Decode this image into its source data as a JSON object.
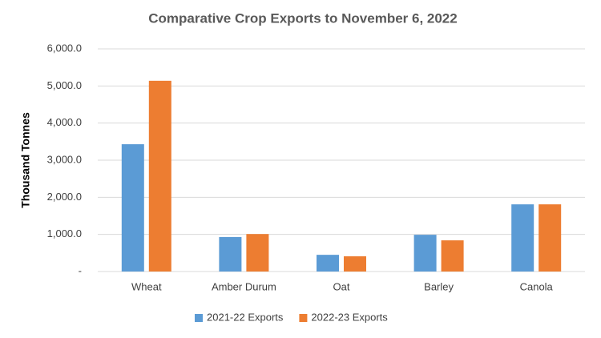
{
  "chart_data": {
    "type": "bar",
    "title": "Comparative Crop Exports to November 6, 2022",
    "y_label": "Thousand Tonnes",
    "categories": [
      "Wheat",
      "Amber Durum",
      "Oat",
      "Barley",
      "Canola"
    ],
    "series": [
      {
        "name": "2021-22 Exports",
        "color": "#5b9bd5",
        "values": [
          3430,
          930,
          450,
          990,
          1810
        ]
      },
      {
        "name": "2022-23 Exports",
        "color": "#ed7d31",
        "values": [
          5140,
          1010,
          410,
          840,
          1810
        ]
      }
    ],
    "ylim": [
      0,
      6000
    ],
    "yticks": [
      {
        "value": 0,
        "label": "-"
      },
      {
        "value": 1000,
        "label": "1,000.0"
      },
      {
        "value": 2000,
        "label": "2,000.0"
      },
      {
        "value": 3000,
        "label": "3,000.0"
      },
      {
        "value": 4000,
        "label": "4,000.0"
      },
      {
        "value": 5000,
        "label": "5,000.0"
      },
      {
        "value": 6000,
        "label": "6,000.0"
      }
    ],
    "grid": true,
    "legend": "bottom"
  }
}
